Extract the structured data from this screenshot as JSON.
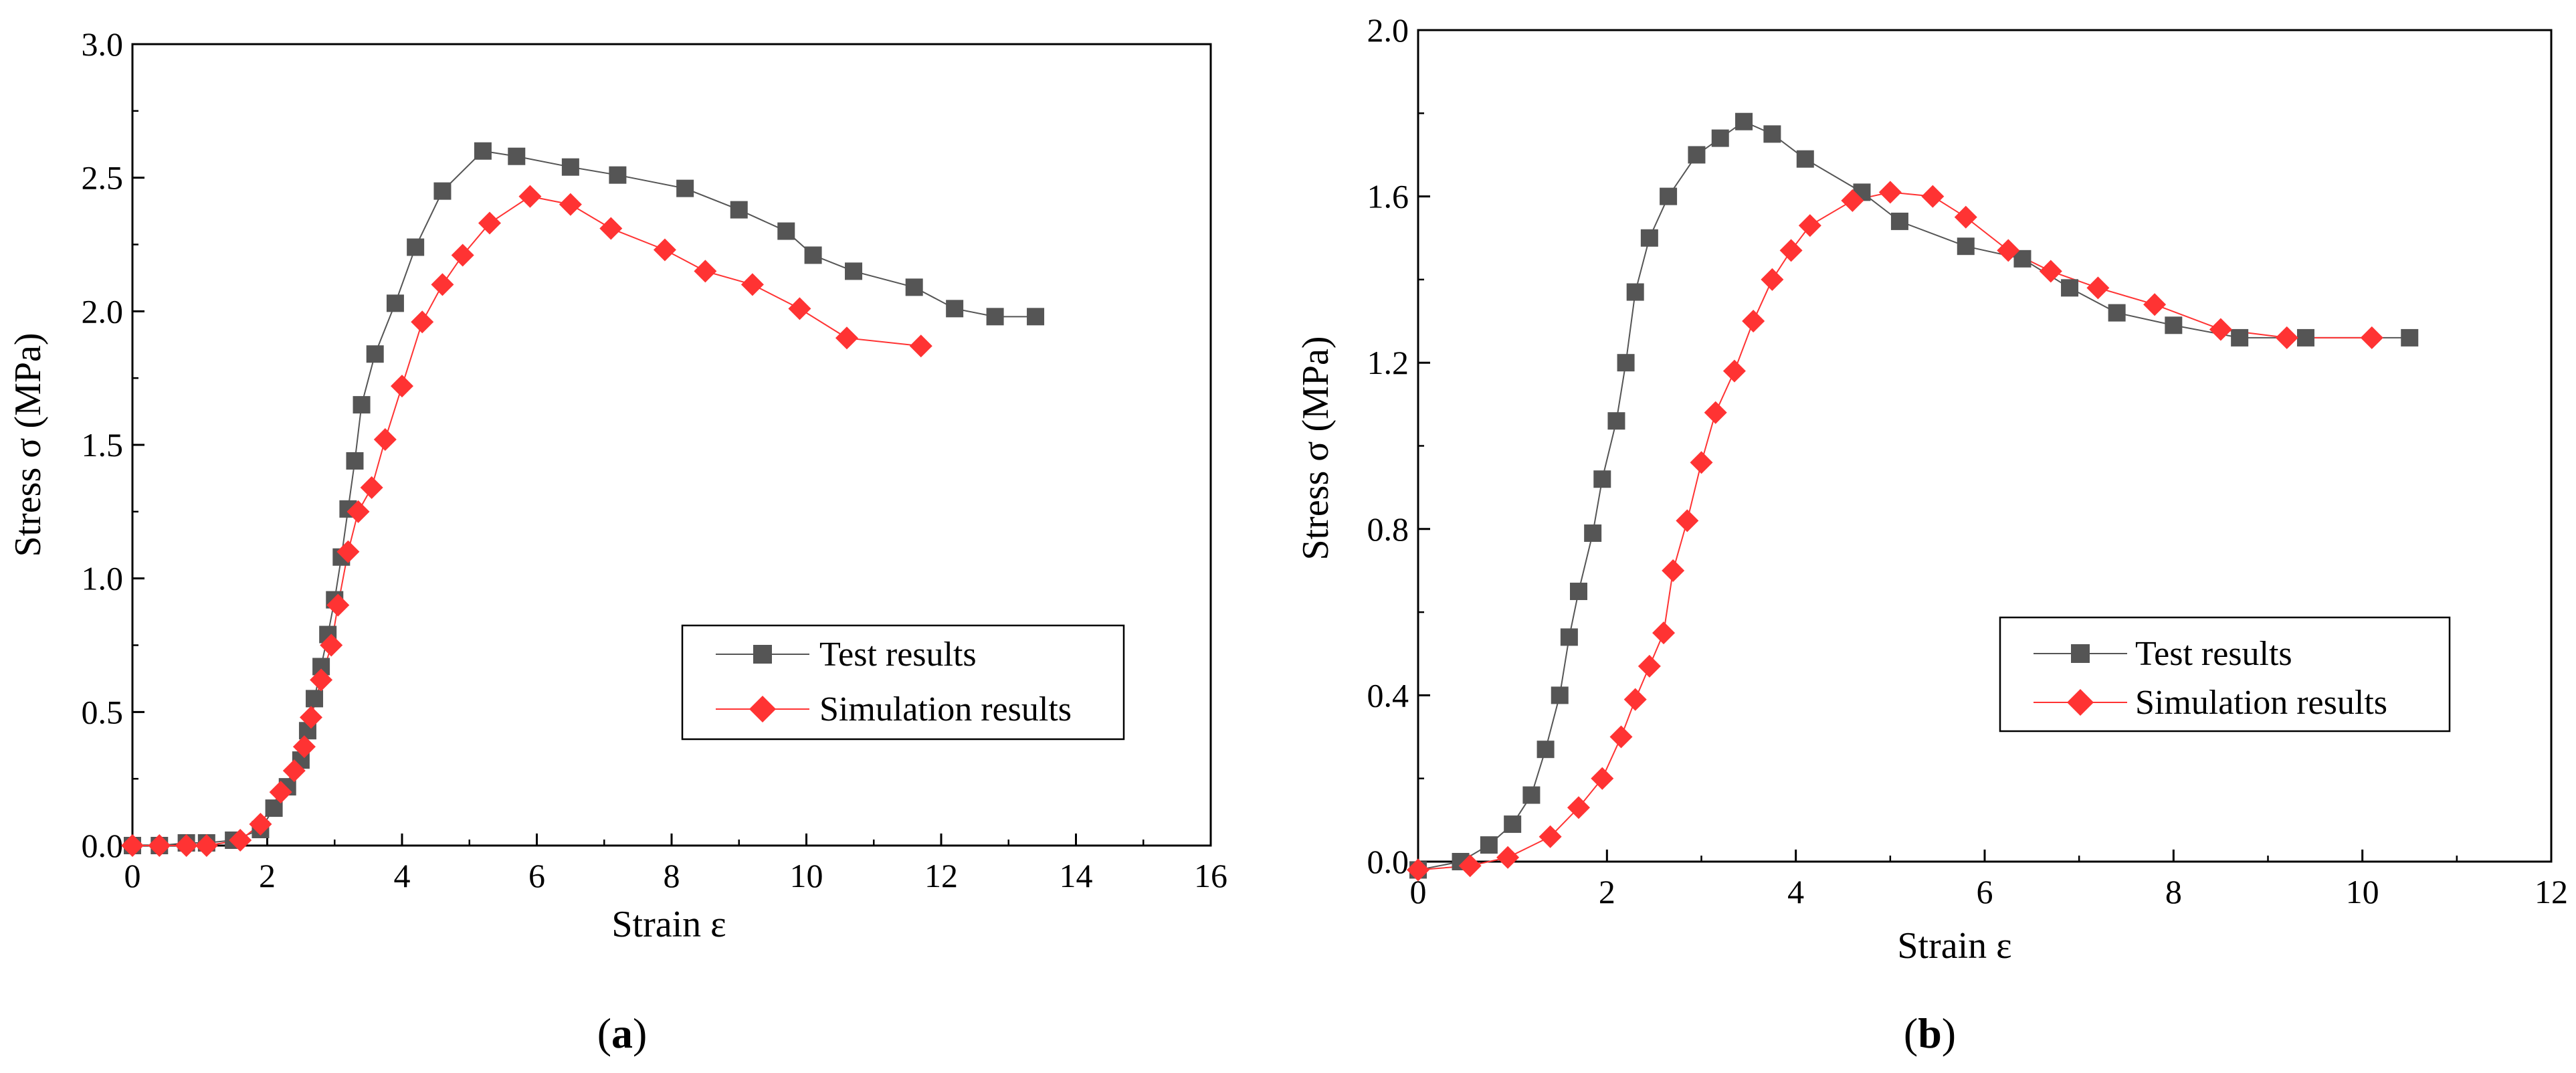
{
  "chart_data": [
    {
      "type": "line",
      "panel_label": "a",
      "xlabel": "Strain ε",
      "ylabel": "Stress σ (MPa)",
      "xlim": [
        0,
        16
      ],
      "ylim": [
        0,
        3.0
      ],
      "xticks": [
        "0",
        "2",
        "4",
        "6",
        "8",
        "10",
        "12",
        "14",
        "16"
      ],
      "yticks": [
        "0.0",
        "0.5",
        "1.0",
        "1.5",
        "2.0",
        "2.5",
        "3.0"
      ],
      "legend_position": "lower-right",
      "series": [
        {
          "name": "Test results",
          "color": "#555555",
          "marker": "square",
          "x": [
            0,
            0.4,
            0.8,
            1.1,
            1.5,
            1.9,
            2.1,
            2.3,
            2.5,
            2.6,
            2.7,
            2.8,
            2.9,
            3.0,
            3.1,
            3.2,
            3.3,
            3.4,
            3.6,
            3.9,
            4.2,
            4.6,
            5.2,
            5.7,
            6.5,
            7.2,
            8.2,
            9.0,
            9.7,
            10.1,
            10.7,
            11.6,
            12.2,
            12.8,
            13.4
          ],
          "y": [
            0,
            0,
            0.01,
            0.01,
            0.02,
            0.06,
            0.14,
            0.22,
            0.32,
            0.43,
            0.55,
            0.67,
            0.79,
            0.92,
            1.08,
            1.26,
            1.44,
            1.65,
            1.84,
            2.03,
            2.24,
            2.45,
            2.6,
            2.58,
            2.54,
            2.51,
            2.46,
            2.38,
            2.3,
            2.21,
            2.15,
            2.09,
            2.01,
            1.98,
            1.98
          ]
        },
        {
          "name": "Simulation results",
          "color": "#ff3333",
          "marker": "diamond",
          "x": [
            0,
            0.4,
            0.8,
            1.1,
            1.6,
            1.9,
            2.2,
            2.4,
            2.55,
            2.65,
            2.8,
            2.95,
            3.05,
            3.2,
            3.35,
            3.55,
            3.75,
            4.0,
            4.3,
            4.6,
            4.9,
            5.3,
            5.9,
            6.5,
            7.1,
            7.9,
            8.5,
            9.2,
            9.9,
            10.6,
            11.7
          ],
          "y": [
            0,
            0,
            0,
            0,
            0.02,
            0.08,
            0.2,
            0.28,
            0.37,
            0.48,
            0.62,
            0.75,
            0.9,
            1.1,
            1.25,
            1.34,
            1.52,
            1.72,
            1.96,
            2.1,
            2.21,
            2.33,
            2.43,
            2.4,
            2.31,
            2.23,
            2.15,
            2.1,
            2.01,
            1.9,
            1.87
          ]
        }
      ]
    },
    {
      "type": "line",
      "panel_label": "b",
      "xlabel": "Strain ε",
      "ylabel": "Stress σ (MPa)",
      "xlim": [
        0,
        12
      ],
      "ylim": [
        0,
        2.0
      ],
      "xticks": [
        "0",
        "2",
        "4",
        "6",
        "8",
        "10",
        "12"
      ],
      "yticks": [
        "0.0",
        "0.4",
        "0.8",
        "1.2",
        "1.6",
        "2.0"
      ],
      "legend_position": "lower-right",
      "series": [
        {
          "name": "Test results",
          "color": "#555555",
          "marker": "square",
          "x": [
            0,
            0.45,
            0.75,
            1.0,
            1.2,
            1.35,
            1.5,
            1.6,
            1.7,
            1.85,
            1.95,
            2.1,
            2.2,
            2.3,
            2.45,
            2.65,
            2.95,
            3.2,
            3.45,
            3.75,
            4.1,
            4.7,
            5.1,
            5.8,
            6.4,
            6.9,
            7.4,
            8.0,
            8.7,
            9.4,
            10.5
          ],
          "y": [
            -0.02,
            0,
            0.04,
            0.09,
            0.16,
            0.27,
            0.4,
            0.54,
            0.65,
            0.79,
            0.92,
            1.06,
            1.2,
            1.37,
            1.5,
            1.6,
            1.7,
            1.74,
            1.78,
            1.75,
            1.69,
            1.61,
            1.54,
            1.48,
            1.45,
            1.38,
            1.32,
            1.29,
            1.26,
            1.26,
            1.26
          ]
        },
        {
          "name": "Simulation results",
          "color": "#ff3333",
          "marker": "diamond",
          "x": [
            0,
            0.55,
            0.95,
            1.4,
            1.7,
            1.95,
            2.15,
            2.3,
            2.45,
            2.6,
            2.7,
            2.85,
            3.0,
            3.15,
            3.35,
            3.55,
            3.75,
            3.95,
            4.15,
            4.6,
            5.0,
            5.45,
            5.8,
            6.25,
            6.7,
            7.2,
            7.8,
            8.5,
            9.2,
            10.1
          ],
          "y": [
            -0.02,
            -0.01,
            0.01,
            0.06,
            0.13,
            0.2,
            0.3,
            0.39,
            0.47,
            0.55,
            0.7,
            0.82,
            0.96,
            1.08,
            1.18,
            1.3,
            1.4,
            1.47,
            1.53,
            1.59,
            1.61,
            1.6,
            1.55,
            1.47,
            1.42,
            1.38,
            1.34,
            1.28,
            1.26,
            1.26
          ]
        }
      ]
    }
  ]
}
